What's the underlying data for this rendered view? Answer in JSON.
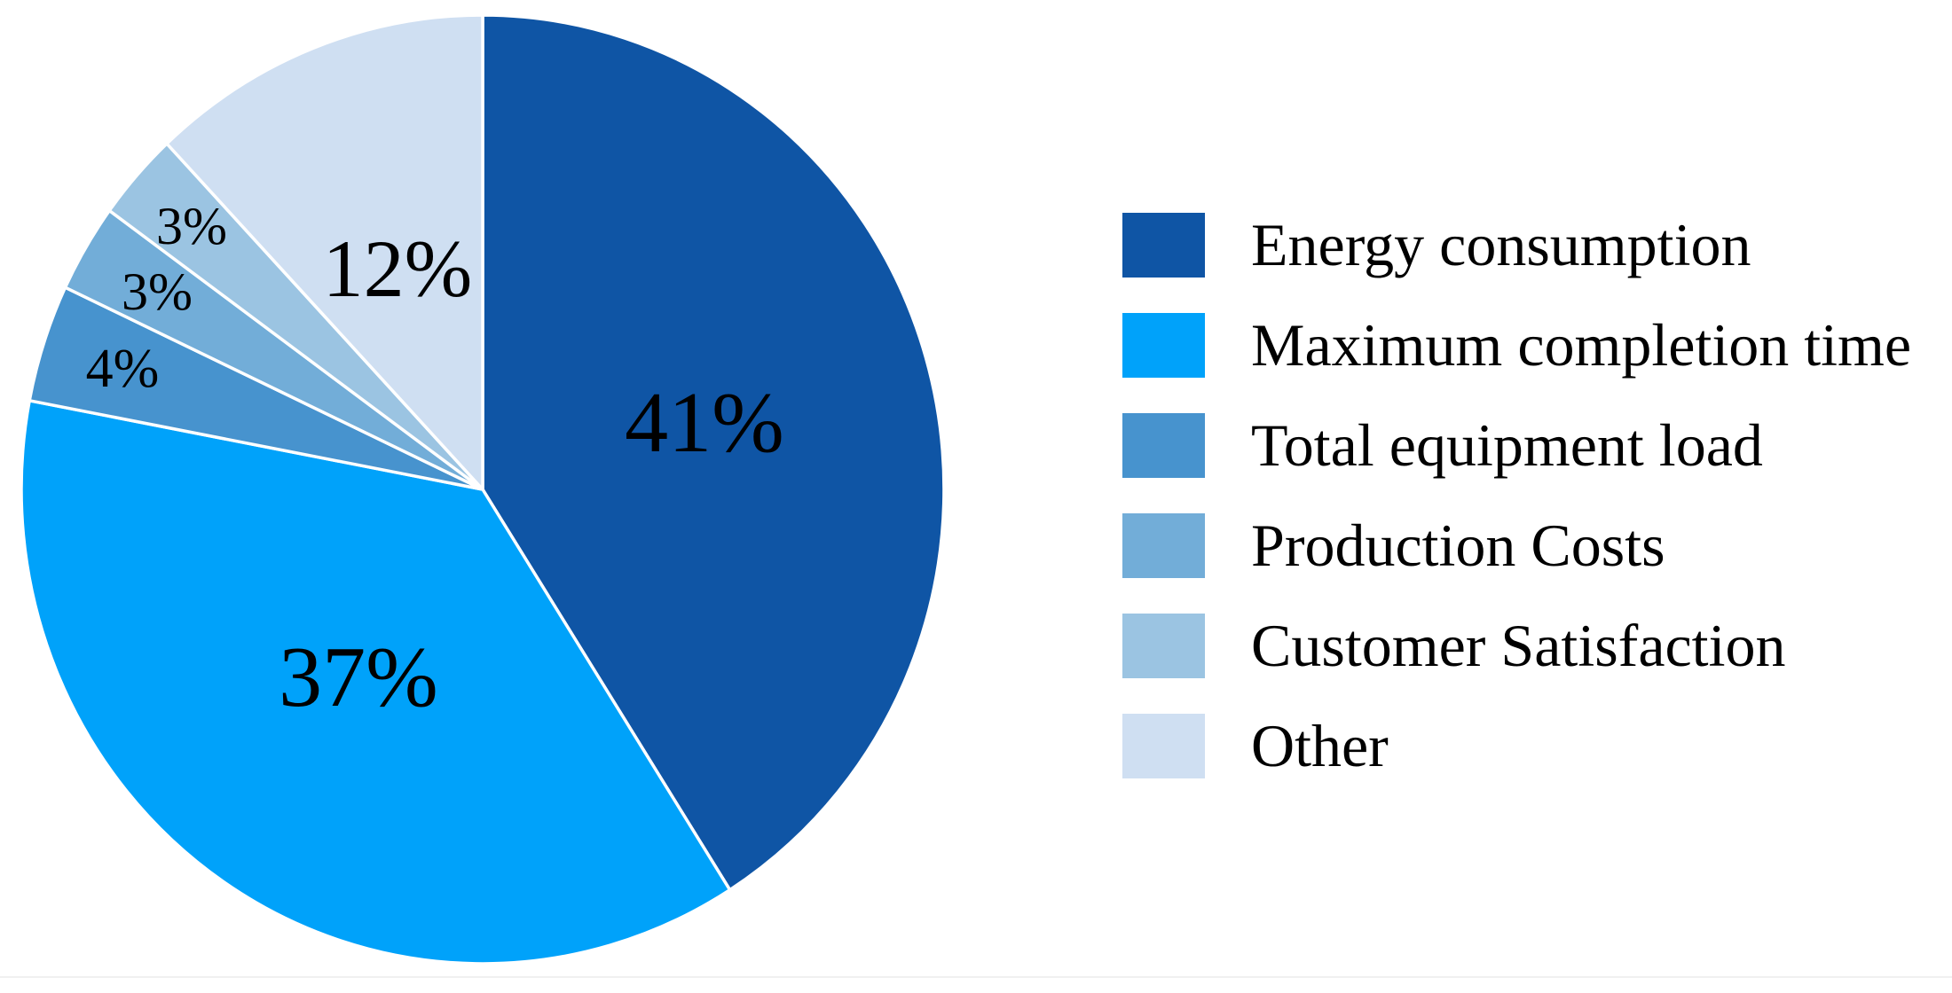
{
  "chart_data": {
    "type": "pie",
    "title": "",
    "legend_position": "right",
    "direction": "clockwise",
    "start_angle_deg": 0,
    "slice_separator_color": "#ffffff",
    "label_color": "#000000",
    "background_color": "#ffffff",
    "slices": [
      {
        "label": "Energy consumption",
        "value": 41,
        "pct_label": "41%",
        "color": "#0F55A5",
        "label_r": 0.5,
        "label_size": 98
      },
      {
        "label": "Maximum completion time",
        "value": 37,
        "pct_label": "37%",
        "color": "#00A2FA",
        "label_r": 0.48,
        "label_size": 98
      },
      {
        "label": "Total equipment load",
        "value": 4,
        "pct_label": "4%",
        "color": "#4793CE",
        "label_r": 0.82,
        "label_size": 62
      },
      {
        "label": "Production Costs",
        "value": 3,
        "pct_label": "3%",
        "color": "#72ADD8",
        "label_r": 0.82,
        "label_size": 60
      },
      {
        "label": "Customer Satisfaction",
        "value": 3,
        "pct_label": "3%",
        "color": "#9BC4E2",
        "label_r": 0.84,
        "label_size": 60
      },
      {
        "label": "Other",
        "value": 12,
        "pct_label": "12%",
        "color": "#CFDFF2",
        "label_r": 0.5,
        "label_size": 92
      }
    ]
  }
}
